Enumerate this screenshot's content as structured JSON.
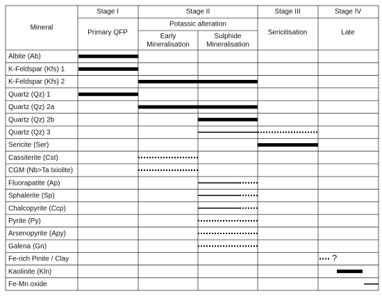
{
  "header": {
    "mineral": "Mineral",
    "stages": [
      "Stage I",
      "Stage II",
      "Stage III",
      "Stage IV"
    ],
    "stage1_sub": "Primary QFP",
    "stage2_sub": "Potassic alteration",
    "stage2_cols": [
      "Early\nMineralisation",
      "Sulphide\nMineralisation"
    ],
    "stage3_sub": "Sericitisation",
    "stage4_sub": "Late"
  },
  "rows": [
    "Albite (Ab)",
    "K-Feldspar (Kfs) 1",
    "K-Feldspar (Kfs) 2",
    "Quartz (Qz) 1",
    "Quartz (Qz) 2a",
    "Quartz (Qz) 2b",
    "Quartz (Qz) 3",
    "Sericite (Ser)",
    "Cassiterite (Cst)",
    "CGM (Nb>Ta Ixiolite)",
    "Fluorapatite (Ap)",
    "Sphalerite (Sp)",
    "Chalcopyrite (Ccp)",
    "Pyrite (Py)",
    "Arsenopyrite (Apy)",
    "Galena (Gn)",
    "Fe-rich Pinite / Clay",
    "Kaolinite (Kln)",
    "Fe-Mn oxide"
  ],
  "annotation": "?"
}
